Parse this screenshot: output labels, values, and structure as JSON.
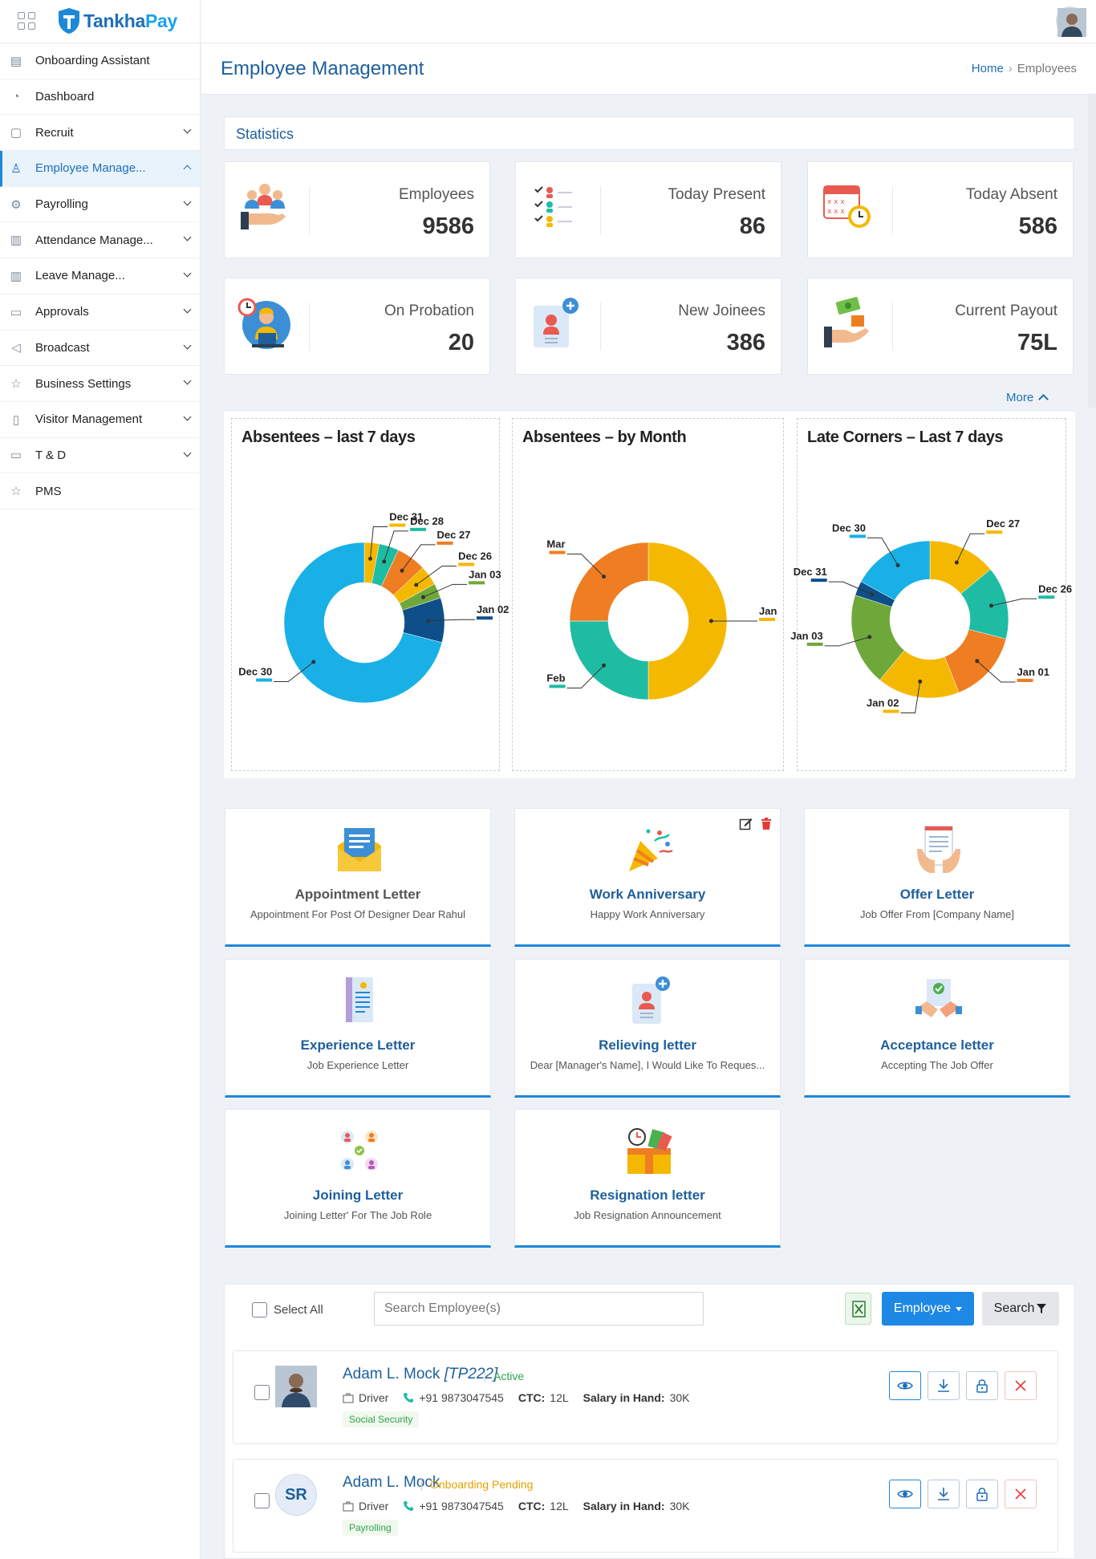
{
  "app": {
    "name_a": "Tankha",
    "name_b": "Pay"
  },
  "sidebar": {
    "items": [
      {
        "label": "Onboarding Assistant",
        "icon": "id-card-icon",
        "chevron": ""
      },
      {
        "label": "Dashboard",
        "icon": "dashboard-icon",
        "chevron": ""
      },
      {
        "label": "Recruit",
        "icon": "calendar-icon",
        "chevron": "down"
      },
      {
        "label": "Employee Manage...",
        "icon": "user-icon",
        "chevron": "up"
      },
      {
        "label": "Payrolling",
        "icon": "gear-icon",
        "chevron": "down"
      },
      {
        "label": "Attendance Manage...",
        "icon": "attendance-icon",
        "chevron": "down"
      },
      {
        "label": "Leave Manage...",
        "icon": "leave-icon",
        "chevron": "down"
      },
      {
        "label": "Approvals",
        "icon": "folder-icon",
        "chevron": "down"
      },
      {
        "label": "Broadcast",
        "icon": "megaphone-icon",
        "chevron": "down"
      },
      {
        "label": "Business Settings",
        "icon": "star-icon",
        "chevron": "down"
      },
      {
        "label": "Visitor Management",
        "icon": "clipboard-icon",
        "chevron": "down"
      },
      {
        "label": "T & D",
        "icon": "folder-icon",
        "chevron": "down"
      },
      {
        "label": "PMS",
        "icon": "star-icon",
        "chevron": ""
      }
    ]
  },
  "header": {
    "title": "Employee Management",
    "breadcrumb_home": "Home",
    "breadcrumb_current": "Employees"
  },
  "statistics": {
    "title": "Statistics",
    "more_label": "More",
    "cards": [
      {
        "label": "Employees",
        "value": "9586"
      },
      {
        "label": "Today Present",
        "value": "86"
      },
      {
        "label": "Today Absent",
        "value": "586"
      },
      {
        "label": "On Probation",
        "value": "20"
      },
      {
        "label": "New Joinees",
        "value": "386"
      },
      {
        "label": "Current Payout",
        "value": "75L"
      }
    ]
  },
  "chart_data": [
    {
      "type": "pie",
      "title": "Absentees – last 7 days",
      "labels": [
        "Dec 31",
        "Dec 28",
        "Dec 27",
        "Dec 26",
        "Jan 03",
        "Jan 02",
        "Dec 30"
      ],
      "values": [
        3,
        4,
        6,
        4,
        3,
        9,
        71
      ],
      "colors": [
        "#f5b800",
        "#1fbca4",
        "#ef7d22",
        "#f5b800",
        "#6fa83a",
        "#0e4f8a",
        "#18b0e6"
      ]
    },
    {
      "type": "pie",
      "title": "Absentees – by Month",
      "labels": [
        "Jan",
        "Feb",
        "Mar"
      ],
      "values": [
        50,
        25,
        25
      ],
      "colors": [
        "#f5b800",
        "#1fbca4",
        "#ef7d22"
      ]
    },
    {
      "type": "pie",
      "title": "Late Corners – Last 7 days",
      "labels": [
        "Dec 27",
        "Dec 26",
        "Jan 01",
        "Jan 02",
        "Jan 03",
        "Dec 31",
        "Dec 30"
      ],
      "values": [
        14,
        15,
        15,
        17,
        19,
        3,
        17
      ],
      "colors": [
        "#f5b800",
        "#1fbca4",
        "#ef7d22",
        "#f5b800",
        "#6fa83a",
        "#0e4f8a",
        "#18b0e6"
      ]
    }
  ],
  "letters": [
    {
      "title": "Appointment Letter",
      "subtitle": "Appointment For Post Of Designer Dear Rahul",
      "icon": "envelope-letter-icon"
    },
    {
      "title": "Work Anniversary",
      "subtitle": "Happy Work Anniversary",
      "icon": "party-popper-icon"
    },
    {
      "title": "Offer Letter",
      "subtitle": "Job Offer From [Company Name]",
      "icon": "offer-document-icon"
    },
    {
      "title": "Experience Letter",
      "subtitle": "Job Experience Letter",
      "icon": "experience-document-icon"
    },
    {
      "title": "Relieving letter",
      "subtitle": "Dear [Manager's Name], I Would Like To Reques...",
      "icon": "relieving-document-icon"
    },
    {
      "title": "Acceptance letter",
      "subtitle": "Accepting The Job Offer",
      "icon": "handshake-icon"
    },
    {
      "title": "Joining Letter",
      "subtitle": "Joining Letter' For The Job Role",
      "icon": "team-join-icon"
    },
    {
      "title": "Resignation letter",
      "subtitle": "Job Resignation Announcement",
      "icon": "resignation-box-icon"
    }
  ],
  "employees_toolbar": {
    "select_all": "Select All",
    "search_placeholder": "Search Employee(s)",
    "employee_button": "Employee",
    "search_button": "Search"
  },
  "employees": [
    {
      "name": "Adam L. Mock",
      "code": "[TP222]",
      "status": "Active",
      "role": "Driver",
      "phone": "+91 9873047545",
      "ctc_label": "CTC:",
      "ctc": "12L",
      "salary_label": "Salary in Hand:",
      "salary": "30K",
      "tag": "Social Security",
      "initials": ""
    },
    {
      "name": "Adam L. Mock",
      "code": "",
      "status": "Onboarding Pending",
      "role": "Driver",
      "phone": "+91 9873047545",
      "ctc_label": "CTC:",
      "ctc": "12L",
      "salary_label": "Salary in Hand:",
      "salary": "30K",
      "tag": "Payrolling",
      "initials": "SR"
    }
  ]
}
